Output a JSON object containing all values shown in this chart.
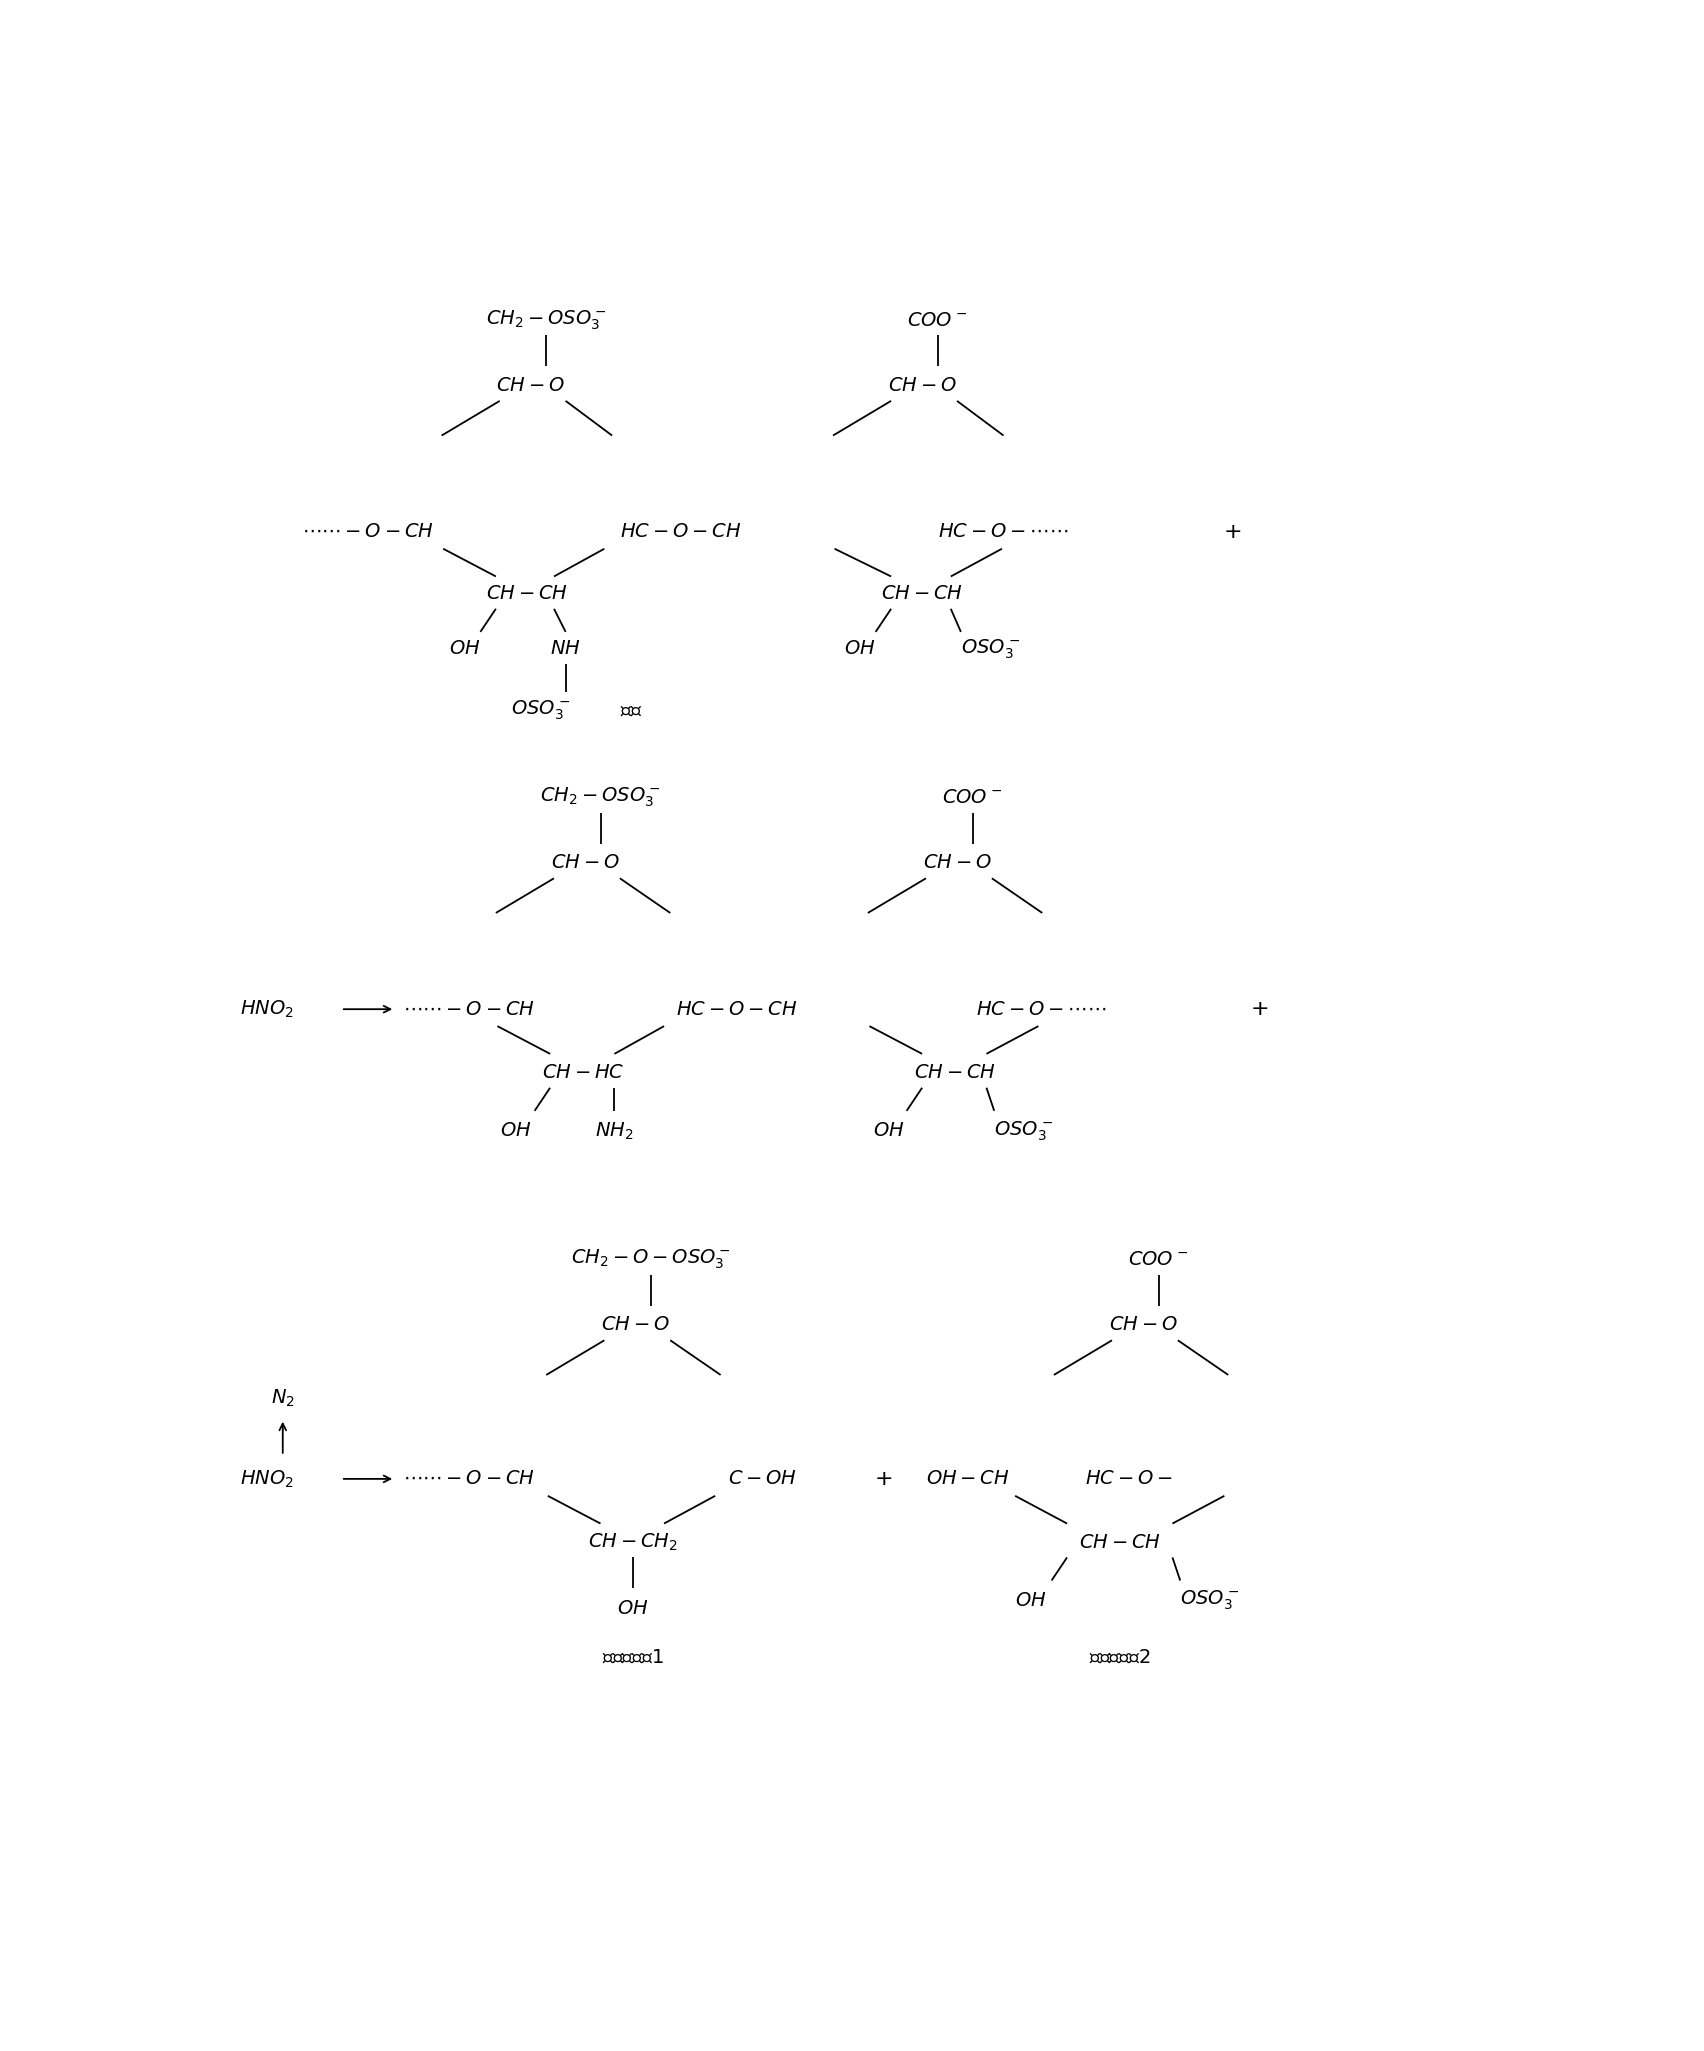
{
  "bg_color": "#ffffff",
  "text_color": "#000000",
  "font_size": 14
}
